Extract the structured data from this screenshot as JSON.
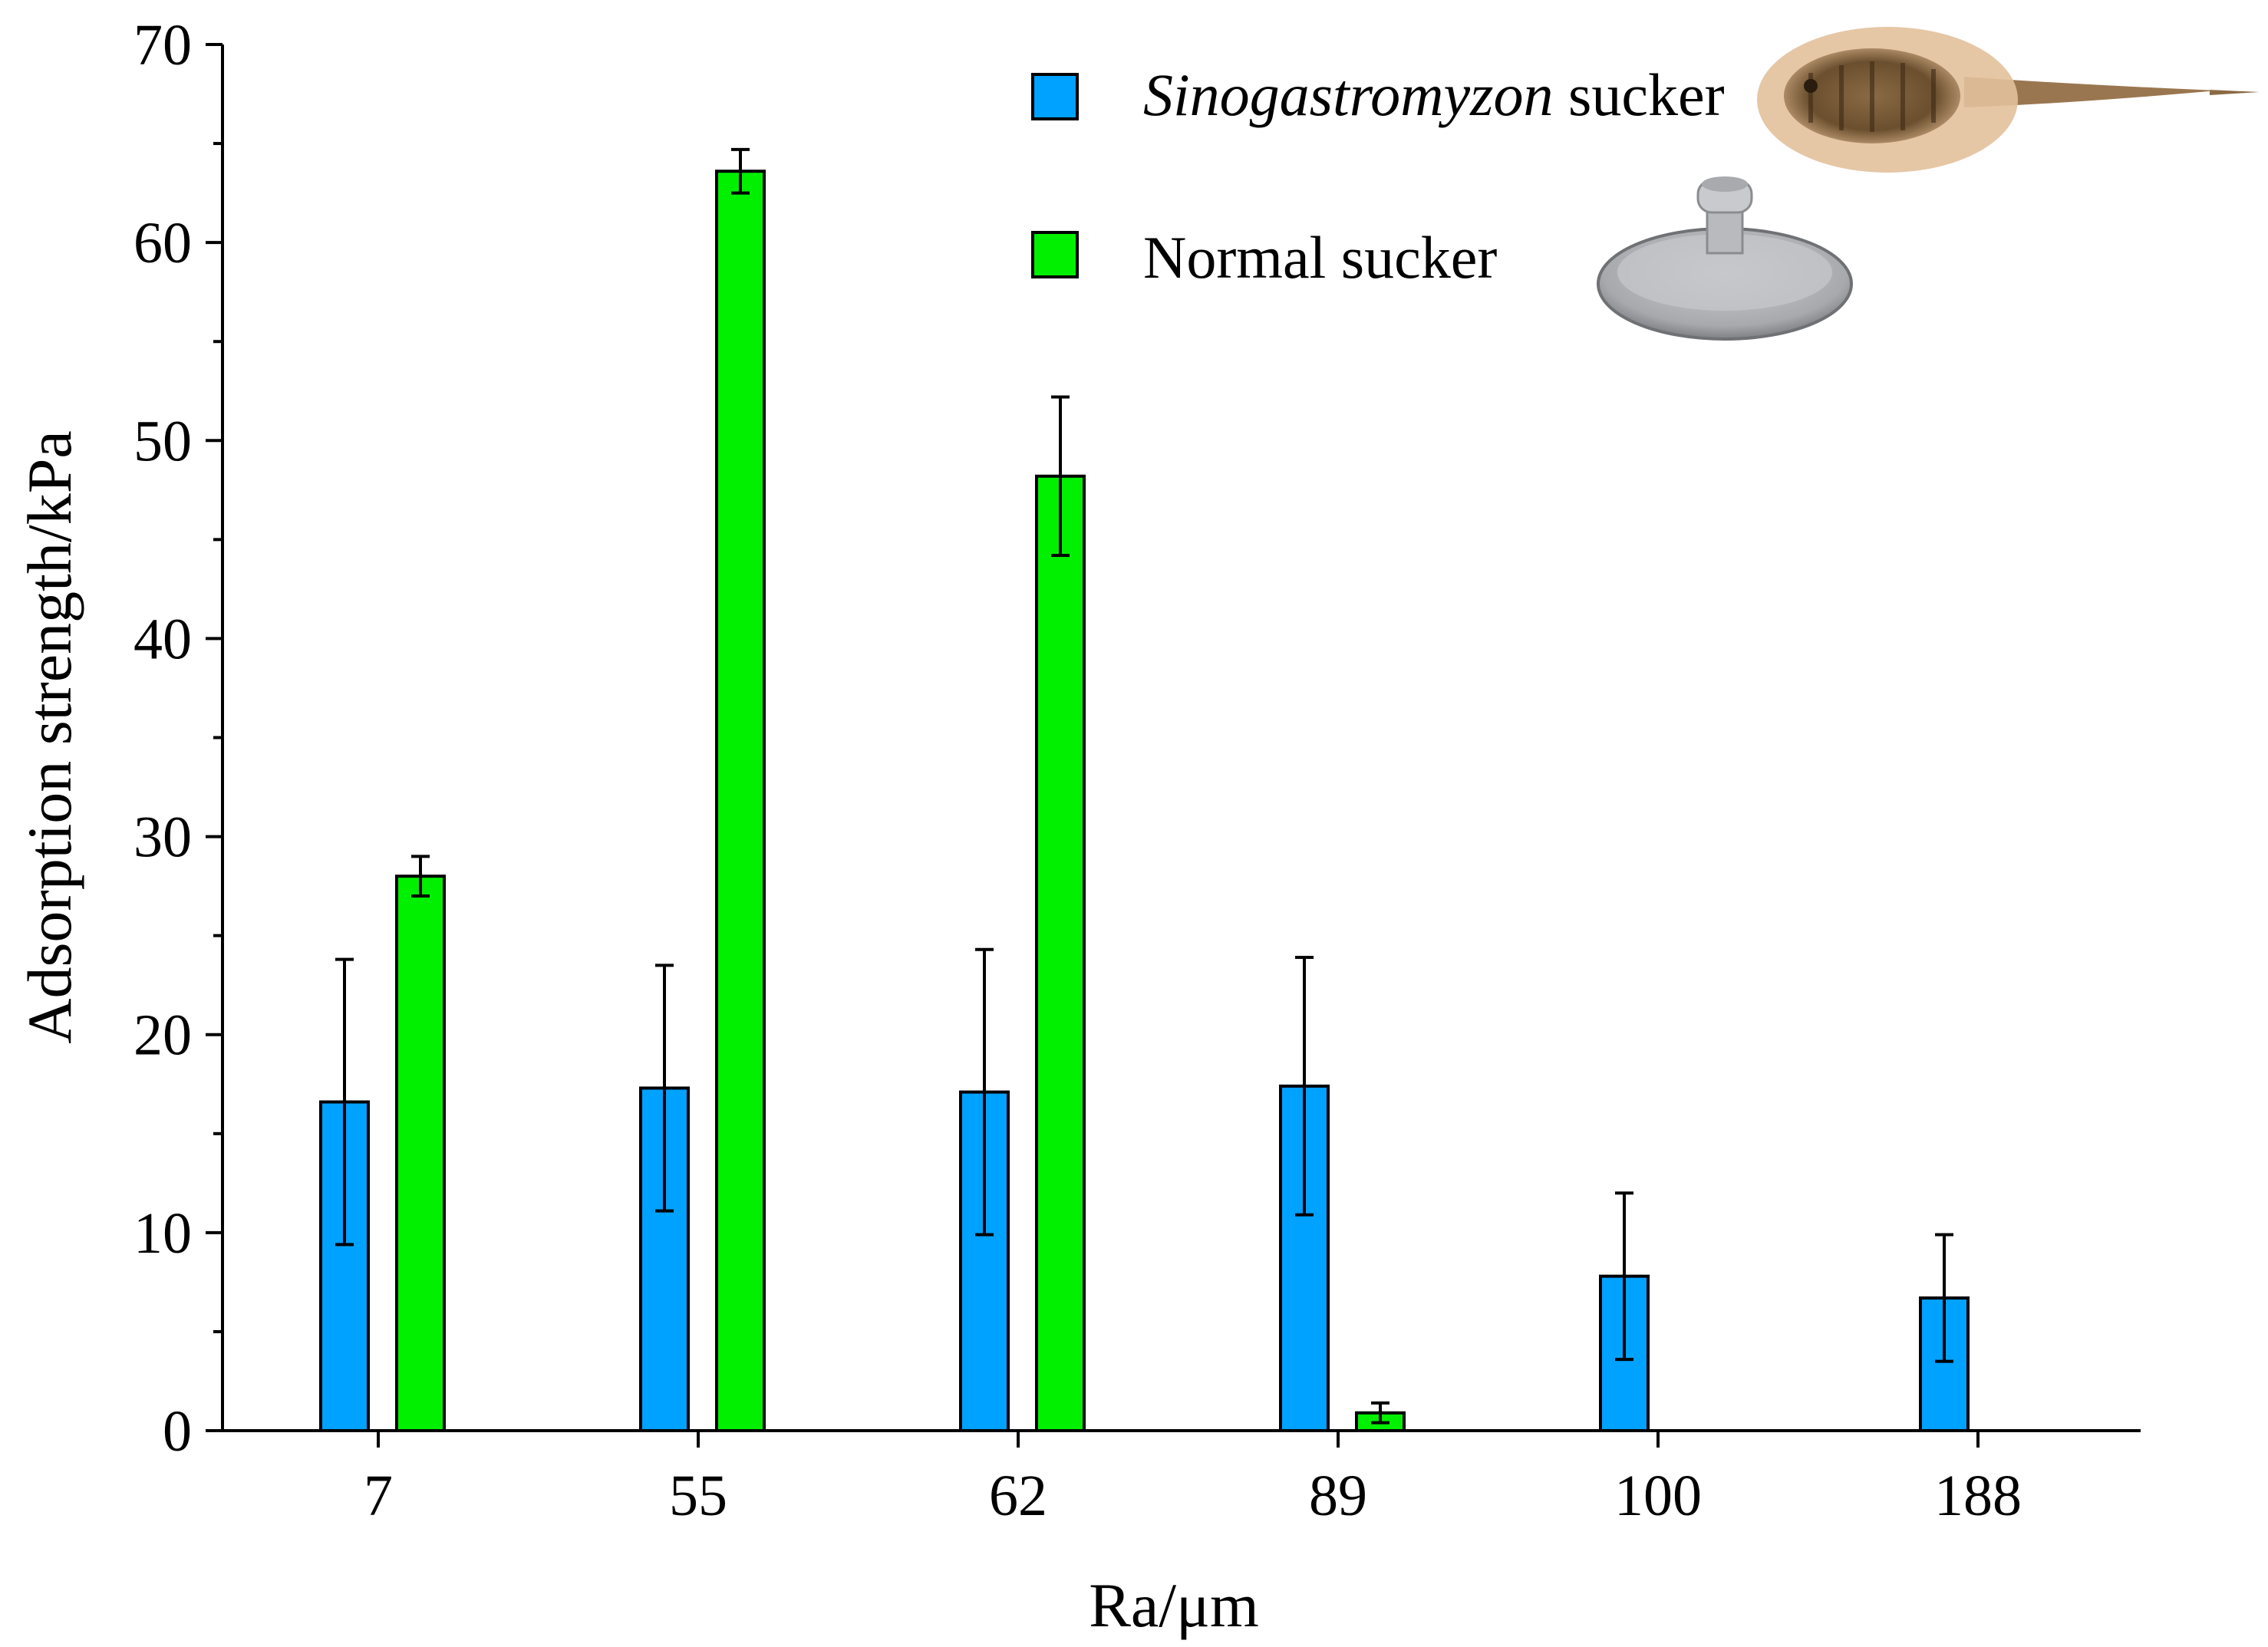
{
  "colors": {
    "sinogastromyzon": "#00A2FF",
    "normal": "#00F000",
    "axis": "#000000",
    "bar_stroke": "#000000"
  },
  "legend": {
    "series1_name_italic": "Sinogastromyzon",
    "series1_name_suffix": " sucker",
    "series2_name": "Normal sucker",
    "fish_image": "fish-photo",
    "cup_image": "suction-cup-photo"
  },
  "chart_data": {
    "type": "bar",
    "title": "",
    "xlabel": "Ra/μm",
    "ylabel": "Adsorption strength/kPa",
    "categories": [
      "7",
      "55",
      "62",
      "89",
      "100",
      "188"
    ],
    "ylim": [
      0,
      70
    ],
    "yticks": [
      0,
      10,
      20,
      30,
      40,
      50,
      60,
      70
    ],
    "legend_position": "top-right",
    "series": [
      {
        "name": "Sinogastromyzon sucker",
        "values": [
          16.6,
          17.3,
          17.1,
          17.4,
          7.8,
          6.7
        ],
        "errors": [
          7.2,
          6.2,
          7.2,
          6.5,
          4.2,
          3.2
        ]
      },
      {
        "name": "Normal sucker",
        "values": [
          28.0,
          63.6,
          48.2,
          0.9,
          null,
          null
        ],
        "errors": [
          1.0,
          1.1,
          4.0,
          0.5,
          null,
          null
        ]
      }
    ]
  }
}
